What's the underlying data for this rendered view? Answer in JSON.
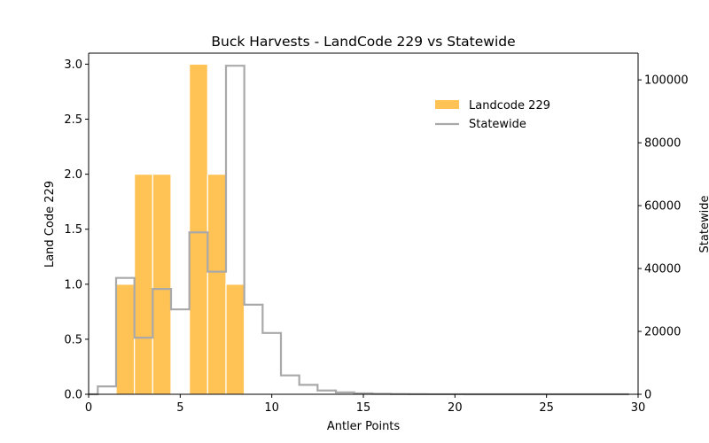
{
  "chart_data": {
    "type": "bar",
    "title": "Buck Harvests - LandCode 229 vs Statewide",
    "xlabel": "Antler Points",
    "ylabel_left": "Land Code 229",
    "ylabel_right": "Statewide",
    "xlim": [
      0,
      30
    ],
    "ylim_left": [
      0,
      3.1
    ],
    "ylim_right": [
      0,
      108500
    ],
    "xticks": [
      "0",
      "5",
      "10",
      "15",
      "20",
      "25",
      "30"
    ],
    "yticks_left": [
      "0.0",
      "0.5",
      "1.0",
      "1.5",
      "2.0",
      "2.5",
      "3.0"
    ],
    "yticks_right": [
      "0",
      "20000",
      "40000",
      "60000",
      "80000",
      "100000"
    ],
    "grid": false,
    "legend_position": "upper-right",
    "series": [
      {
        "name": "Landcode 229",
        "kind": "bar",
        "axis": "left",
        "color": "#ffbf4c",
        "bars": [
          {
            "x": 2,
            "value": 1
          },
          {
            "x": 3,
            "value": 2
          },
          {
            "x": 4,
            "value": 2
          },
          {
            "x": 6,
            "value": 3
          },
          {
            "x": 7,
            "value": 2
          },
          {
            "x": 8,
            "value": 1
          }
        ]
      },
      {
        "name": "Statewide",
        "kind": "step",
        "axis": "right",
        "color": "#a9a9a9",
        "bins": [
          {
            "x": 0,
            "value": 0
          },
          {
            "x": 1,
            "value": 2500
          },
          {
            "x": 2,
            "value": 37000
          },
          {
            "x": 3,
            "value": 18000
          },
          {
            "x": 4,
            "value": 33500
          },
          {
            "x": 5,
            "value": 27000
          },
          {
            "x": 6,
            "value": 51500
          },
          {
            "x": 7,
            "value": 39000
          },
          {
            "x": 8,
            "value": 104500
          },
          {
            "x": 9,
            "value": 28500
          },
          {
            "x": 10,
            "value": 19500
          },
          {
            "x": 11,
            "value": 6000
          },
          {
            "x": 12,
            "value": 3000
          },
          {
            "x": 13,
            "value": 1200
          },
          {
            "x": 14,
            "value": 600
          },
          {
            "x": 15,
            "value": 300
          },
          {
            "x": 16,
            "value": 150
          },
          {
            "x": 17,
            "value": 60
          },
          {
            "x": 18,
            "value": 40
          },
          {
            "x": 19,
            "value": 20
          },
          {
            "x": 20,
            "value": 15
          },
          {
            "x": 21,
            "value": 10
          },
          {
            "x": 22,
            "value": 8
          },
          {
            "x": 23,
            "value": 5
          },
          {
            "x": 24,
            "value": 4
          },
          {
            "x": 25,
            "value": 3
          },
          {
            "x": 26,
            "value": 2
          },
          {
            "x": 27,
            "value": 2
          },
          {
            "x": 28,
            "value": 1
          },
          {
            "x": 29,
            "value": 1
          }
        ]
      }
    ]
  }
}
